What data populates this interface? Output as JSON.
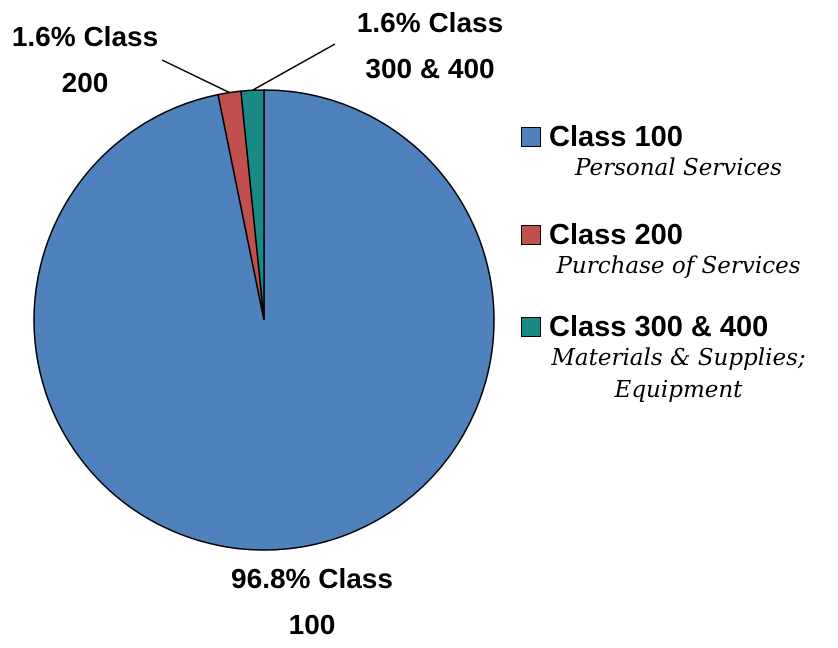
{
  "chart_data": {
    "type": "pie",
    "categories": [
      "Class 100",
      "Class 200",
      "Class 300 & 400"
    ],
    "values": [
      96.8,
      1.6,
      1.6
    ],
    "value_labels": [
      "96.8%",
      "1.6%",
      "1.6%"
    ],
    "colors": [
      "#4f81bd",
      "#c0504d",
      "#1a8a87"
    ],
    "legend": {
      "position": "right",
      "descriptions": [
        "Personal Services",
        "Purchase of Services",
        "Materials & Supplies; Equipment"
      ]
    }
  }
}
